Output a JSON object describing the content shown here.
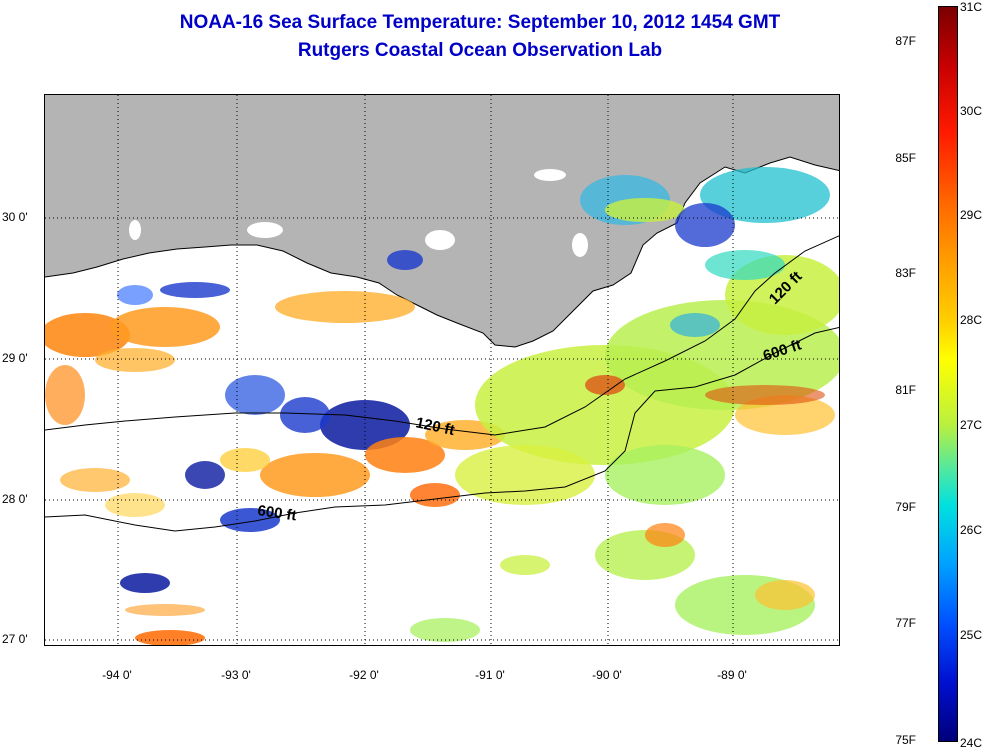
{
  "title": "NOAA-16 Sea Surface Temperature:  September 10, 2012 1454 GMT",
  "subtitle": "Rutgers Coastal Ocean Observation Lab",
  "axes": {
    "lat_labels": [
      "30 0'",
      "29 0'",
      "28 0'",
      "27 0'"
    ],
    "lon_labels": [
      "-94 0'",
      "-93 0'",
      "-92 0'",
      "-91 0'",
      "-90 0'",
      "-89 0'"
    ]
  },
  "contours": {
    "shallow": "120 ft",
    "deep": "600 ft"
  },
  "colorbar": {
    "f_labels": [
      "87F",
      "85F",
      "83F",
      "81F",
      "79F",
      "77F",
      "75F"
    ],
    "c_labels": [
      "31C",
      "30C",
      "29C",
      "28C",
      "27C",
      "26C",
      "25C",
      "24C"
    ]
  },
  "colors": {
    "land": "#b4b4b4",
    "title": "#0000c8"
  }
}
